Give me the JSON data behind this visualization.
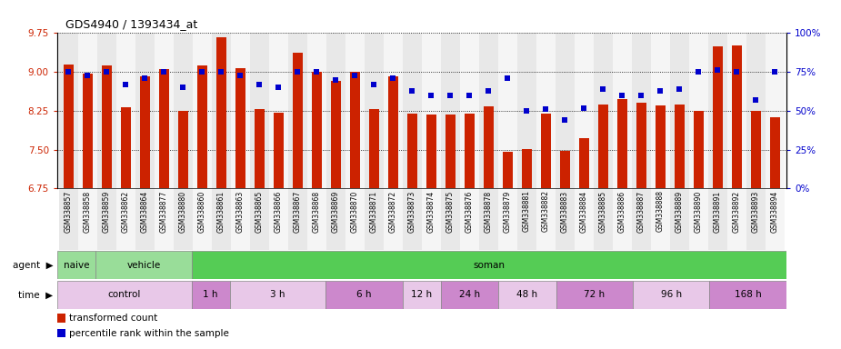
{
  "title": "GDS4940 / 1393434_at",
  "samples": [
    "GSM338857",
    "GSM338858",
    "GSM338859",
    "GSM338862",
    "GSM338864",
    "GSM338877",
    "GSM338880",
    "GSM338860",
    "GSM338861",
    "GSM338863",
    "GSM338865",
    "GSM338866",
    "GSM338867",
    "GSM338868",
    "GSM338869",
    "GSM338870",
    "GSM338871",
    "GSM338872",
    "GSM338873",
    "GSM338874",
    "GSM338875",
    "GSM338876",
    "GSM338878",
    "GSM338879",
    "GSM338881",
    "GSM338882",
    "GSM338883",
    "GSM338884",
    "GSM338885",
    "GSM338886",
    "GSM338887",
    "GSM338888",
    "GSM338889",
    "GSM338890",
    "GSM338891",
    "GSM338892",
    "GSM338893",
    "GSM338894"
  ],
  "bar_values": [
    9.15,
    8.97,
    9.13,
    8.32,
    8.92,
    9.06,
    8.24,
    9.13,
    9.67,
    9.08,
    8.28,
    8.21,
    9.38,
    9.01,
    8.82,
    9.01,
    8.28,
    8.92,
    8.19,
    8.18,
    8.17,
    8.19,
    8.33,
    7.45,
    7.52,
    8.19,
    7.48,
    7.72,
    8.37,
    8.48,
    8.4,
    8.36,
    8.38,
    8.24,
    9.5,
    9.52,
    8.24,
    8.12
  ],
  "percentile_values": [
    75,
    73,
    75,
    67,
    71,
    75,
    65,
    75,
    75,
    73,
    67,
    65,
    75,
    75,
    70,
    73,
    67,
    71,
    63,
    60,
    60,
    60,
    63,
    71,
    50,
    51,
    44,
    52,
    64,
    60,
    60,
    63,
    64,
    75,
    76,
    75,
    57,
    75
  ],
  "ymin": 6.75,
  "ymax": 9.75,
  "yticks_left": [
    6.75,
    7.5,
    8.25,
    9.0,
    9.75
  ],
  "yticks_right": [
    0,
    25,
    50,
    75,
    100
  ],
  "bar_color": "#cc2200",
  "dot_color": "#0000cc",
  "col_bg_even": "#e8e8e8",
  "col_bg_odd": "#f5f5f5",
  "agent_groups": [
    {
      "label": "naive",
      "start": 0,
      "end": 2,
      "color": "#99dd99"
    },
    {
      "label": "vehicle",
      "start": 2,
      "end": 7,
      "color": "#99dd99"
    },
    {
      "label": "soman",
      "start": 7,
      "end": 38,
      "color": "#55cc55"
    }
  ],
  "time_groups": [
    {
      "label": "control",
      "start": 0,
      "end": 7,
      "color": "#e8c8e8"
    },
    {
      "label": "1 h",
      "start": 7,
      "end": 9,
      "color": "#cc88cc"
    },
    {
      "label": "3 h",
      "start": 9,
      "end": 14,
      "color": "#e8c8e8"
    },
    {
      "label": "6 h",
      "start": 14,
      "end": 18,
      "color": "#cc88cc"
    },
    {
      "label": "12 h",
      "start": 18,
      "end": 20,
      "color": "#e8c8e8"
    },
    {
      "label": "24 h",
      "start": 20,
      "end": 23,
      "color": "#cc88cc"
    },
    {
      "label": "48 h",
      "start": 23,
      "end": 26,
      "color": "#e8c8e8"
    },
    {
      "label": "72 h",
      "start": 26,
      "end": 30,
      "color": "#cc88cc"
    },
    {
      "label": "96 h",
      "start": 30,
      "end": 34,
      "color": "#e8c8e8"
    },
    {
      "label": "168 h",
      "start": 34,
      "end": 38,
      "color": "#cc88cc"
    }
  ],
  "legend_items": [
    {
      "label": "transformed count",
      "color": "#cc2200"
    },
    {
      "label": "percentile rank within the sample",
      "color": "#0000cc"
    }
  ],
  "fig_width": 9.25,
  "fig_height": 3.84,
  "dpi": 100
}
